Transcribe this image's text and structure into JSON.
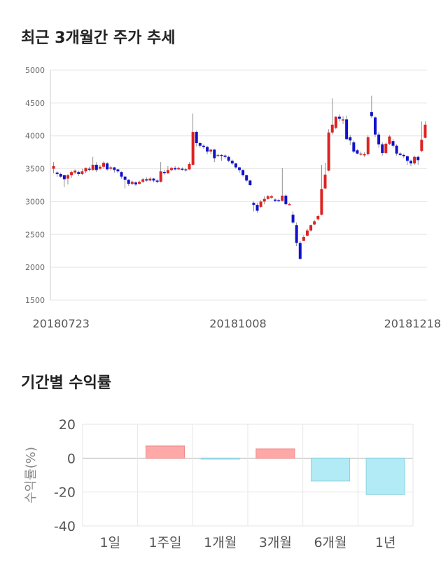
{
  "section1": {
    "title": "최근 3개월간 주가 추세"
  },
  "section2": {
    "title": "기간별 수익률"
  },
  "chart_data": [
    {
      "type": "candlestick",
      "y_ticks": [
        "5000",
        "4500",
        "4000",
        "3500",
        "3000",
        "2500",
        "2000",
        "1500"
      ],
      "ylim": [
        1500,
        5000
      ],
      "x_labels": [
        "20180723",
        "20181008",
        "20181218"
      ],
      "grid": true,
      "up_color": "#dd2222",
      "down_color": "#1111cc",
      "candles": [
        [
          3500,
          3540,
          3600,
          3430
        ],
        [
          3440,
          3420,
          3460,
          3380
        ],
        [
          3420,
          3380,
          3440,
          3360
        ],
        [
          3400,
          3340,
          3410,
          3220
        ],
        [
          3350,
          3400,
          3420,
          3260
        ],
        [
          3400,
          3450,
          3470,
          3360
        ],
        [
          3440,
          3470,
          3490,
          3420
        ],
        [
          3450,
          3420,
          3470,
          3390
        ],
        [
          3420,
          3460,
          3500,
          3400
        ],
        [
          3460,
          3510,
          3520,
          3430
        ],
        [
          3500,
          3490,
          3530,
          3460
        ],
        [
          3480,
          3560,
          3680,
          3470
        ],
        [
          3560,
          3480,
          3600,
          3450
        ],
        [
          3500,
          3530,
          3560,
          3480
        ],
        [
          3530,
          3590,
          3610,
          3500
        ],
        [
          3580,
          3490,
          3600,
          3470
        ],
        [
          3500,
          3520,
          3540,
          3470
        ],
        [
          3520,
          3480,
          3530,
          3440
        ],
        [
          3490,
          3460,
          3500,
          3430
        ],
        [
          3450,
          3380,
          3460,
          3350
        ],
        [
          3380,
          3330,
          3390,
          3200
        ],
        [
          3330,
          3270,
          3340,
          3240
        ],
        [
          3270,
          3300,
          3320,
          3250
        ],
        [
          3290,
          3260,
          3310,
          3240
        ],
        [
          3270,
          3300,
          3320,
          3260
        ],
        [
          3300,
          3340,
          3360,
          3280
        ],
        [
          3340,
          3320,
          3370,
          3300
        ],
        [
          3320,
          3350,
          3370,
          3310
        ],
        [
          3350,
          3320,
          3360,
          3290
        ],
        [
          3320,
          3300,
          3340,
          3280
        ],
        [
          3300,
          3460,
          3600,
          3290
        ],
        [
          3450,
          3430,
          3480,
          3410
        ],
        [
          3430,
          3480,
          3540,
          3420
        ],
        [
          3480,
          3510,
          3530,
          3460
        ],
        [
          3510,
          3490,
          3540,
          3470
        ],
        [
          3490,
          3510,
          3530,
          3480
        ],
        [
          3500,
          3490,
          3520,
          3470
        ],
        [
          3490,
          3480,
          3510,
          3460
        ],
        [
          3490,
          3570,
          3600,
          3480
        ],
        [
          3560,
          4060,
          4340,
          3550
        ],
        [
          4060,
          3890,
          4080,
          3840
        ],
        [
          3890,
          3850,
          3910,
          3820
        ],
        [
          3850,
          3830,
          3870,
          3800
        ],
        [
          3830,
          3760,
          3850,
          3720
        ],
        [
          3760,
          3790,
          3800,
          3720
        ],
        [
          3790,
          3660,
          3800,
          3600
        ],
        [
          3700,
          3710,
          3730,
          3680
        ],
        [
          3710,
          3700,
          3720,
          3620
        ],
        [
          3700,
          3680,
          3720,
          3650
        ],
        [
          3680,
          3620,
          3700,
          3600
        ],
        [
          3620,
          3580,
          3640,
          3560
        ],
        [
          3580,
          3520,
          3590,
          3500
        ],
        [
          3520,
          3480,
          3530,
          3440
        ],
        [
          3480,
          3400,
          3490,
          3380
        ],
        [
          3400,
          3320,
          3410,
          3300
        ],
        [
          3320,
          3250,
          3330,
          3240
        ],
        [
          2980,
          2950,
          3000,
          2850
        ],
        [
          2950,
          2860,
          2980,
          2830
        ],
        [
          2920,
          3000,
          3020,
          2900
        ],
        [
          3000,
          3040,
          3080,
          2960
        ],
        [
          3040,
          3080,
          3100,
          3030
        ],
        [
          3060,
          3080,
          3100,
          3040
        ],
        [
          3030,
          3010,
          3050,
          2990
        ],
        [
          3020,
          3010,
          3040,
          2990
        ],
        [
          3010,
          3090,
          3510,
          3000
        ],
        [
          3090,
          2960,
          3110,
          2940
        ],
        [
          2960,
          2960,
          2980,
          2940
        ],
        [
          2800,
          2680,
          2850,
          2660
        ],
        [
          2640,
          2370,
          2680,
          2320
        ],
        [
          2370,
          2130,
          2400,
          2110
        ],
        [
          2400,
          2460,
          2490,
          2400
        ],
        [
          2480,
          2560,
          2590,
          2470
        ],
        [
          2560,
          2640,
          2650,
          2540
        ],
        [
          2650,
          2700,
          2720,
          2640
        ],
        [
          2730,
          2780,
          2800,
          2710
        ],
        [
          2800,
          3190,
          3560,
          2790
        ],
        [
          3200,
          3410,
          3590,
          3190
        ],
        [
          3470,
          4050,
          4100,
          3460
        ],
        [
          4050,
          4170,
          4570,
          4020
        ],
        [
          4120,
          4290,
          4300,
          4100
        ],
        [
          4290,
          4260,
          4330,
          4220
        ],
        [
          4240,
          4250,
          4300,
          4180
        ],
        [
          4250,
          3950,
          4310,
          3940
        ],
        [
          3980,
          3930,
          4010,
          3860
        ],
        [
          3900,
          3760,
          3930,
          3740
        ],
        [
          3780,
          3730,
          3800,
          3720
        ],
        [
          3730,
          3730,
          3760,
          3700
        ],
        [
          3720,
          3720,
          3750,
          3680
        ],
        [
          3720,
          3980,
          4010,
          3700
        ],
        [
          4360,
          4300,
          4610,
          4270
        ],
        [
          4280,
          4020,
          4300,
          3980
        ],
        [
          4020,
          3870,
          4060,
          3820
        ],
        [
          3870,
          3740,
          3900,
          3700
        ],
        [
          3740,
          3880,
          3900,
          3720
        ],
        [
          3880,
          3990,
          4010,
          3860
        ],
        [
          3920,
          3850,
          3950,
          3820
        ],
        [
          3850,
          3730,
          3870,
          3700
        ],
        [
          3730,
          3710,
          3750,
          3690
        ],
        [
          3710,
          3690,
          3730,
          3660
        ],
        [
          3690,
          3620,
          3700,
          3560
        ],
        [
          3620,
          3580,
          3640,
          3540
        ],
        [
          3580,
          3680,
          3700,
          3560
        ],
        [
          3680,
          3630,
          3700,
          3560
        ],
        [
          3770,
          3940,
          4220,
          3750
        ],
        [
          3970,
          4170,
          4220,
          3960
        ]
      ]
    },
    {
      "type": "bar",
      "title": "",
      "ylabel": "수익률(%)",
      "categories": [
        "1일",
        "1주일",
        "1개월",
        "3개월",
        "6개월",
        "1년"
      ],
      "values": [
        0.0,
        7.2,
        -0.5,
        5.5,
        -13.5,
        -21.5
      ],
      "y_ticks": [
        "20",
        "0",
        "-20",
        "-40"
      ],
      "ylim": [
        -40,
        20
      ],
      "positive_color": "#ffa8a8",
      "negative_color": "#b2ebf5"
    }
  ]
}
